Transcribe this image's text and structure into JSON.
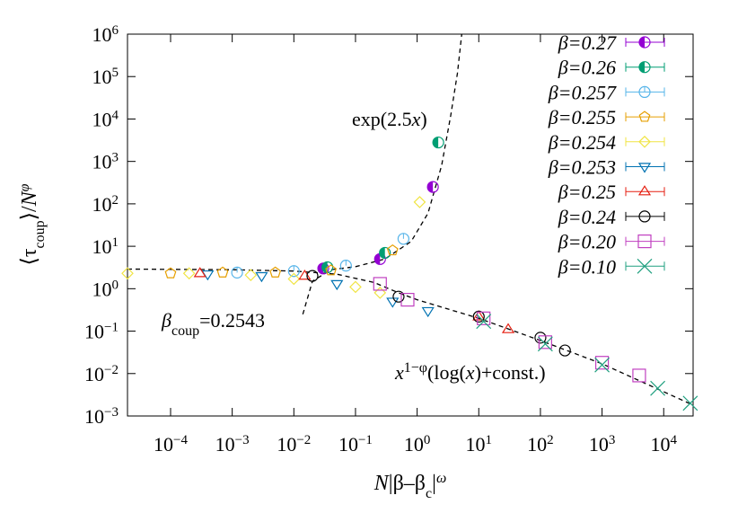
{
  "chart_data": {
    "type": "scatter",
    "x_log": true,
    "y_log": true,
    "xlim": [
      2e-05,
      30000
    ],
    "ylim": [
      0.001,
      1000000
    ],
    "xticks": [
      {
        "value": 0.0001,
        "label": [
          "10",
          "−4"
        ]
      },
      {
        "value": 0.001,
        "label": [
          "10",
          "−3"
        ]
      },
      {
        "value": 0.01,
        "label": [
          "10",
          "−2"
        ]
      },
      {
        "value": 0.1,
        "label": [
          "10",
          "−1"
        ]
      },
      {
        "value": 1,
        "label": [
          "10",
          "0"
        ]
      },
      {
        "value": 10,
        "label": [
          "10",
          "1"
        ]
      },
      {
        "value": 100,
        "label": [
          "10",
          "2"
        ]
      },
      {
        "value": 1000,
        "label": [
          "10",
          "3"
        ]
      },
      {
        "value": 10000,
        "label": [
          "10",
          "4"
        ]
      }
    ],
    "yticks": [
      {
        "value": 0.001,
        "label": [
          "10",
          "−3"
        ]
      },
      {
        "value": 0.01,
        "label": [
          "10",
          "−2"
        ]
      },
      {
        "value": 0.1,
        "label": [
          "10",
          "−1"
        ]
      },
      {
        "value": 1,
        "label": [
          "10",
          "0"
        ]
      },
      {
        "value": 10,
        "label": [
          "10",
          "1"
        ]
      },
      {
        "value": 100,
        "label": [
          "10",
          "2"
        ]
      },
      {
        "value": 1000,
        "label": [
          "10",
          "3"
        ]
      },
      {
        "value": 10000,
        "label": [
          "10",
          "4"
        ]
      },
      {
        "value": 100000,
        "label": [
          "10",
          "5"
        ]
      },
      {
        "value": 1000000,
        "label": [
          "10",
          "6"
        ]
      }
    ],
    "xlabel": [
      "N",
      "|β–β",
      "c",
      "|",
      "ω"
    ],
    "ylabel": [
      "⟨τ",
      "coup",
      "⟩/",
      "N",
      "φ"
    ],
    "legend": "top-right",
    "annotations": [
      {
        "parts": [
          "exp(2.5",
          "x",
          ")"
        ]
      },
      {
        "parts": [
          "β",
          "coup",
          "=0.2543"
        ]
      },
      {
        "parts": [
          "x",
          "1−φ",
          "(log(",
          "x",
          ")+const.)"
        ]
      }
    ],
    "curves": [
      {
        "x": [
          0.014,
          0.02,
          0.04,
          0.1,
          0.3,
          0.8,
          1.5,
          2.5,
          3.5,
          4.5,
          5.3
        ],
        "y": [
          0.25,
          1.5,
          2.8,
          3.3,
          5,
          13,
          60,
          800,
          12000,
          120000,
          1000000
        ]
      },
      {
        "x": [
          2e-05,
          0.001,
          0.01,
          0.05,
          0.2,
          0.5,
          1,
          10,
          100,
          1000,
          30000
        ],
        "y": [
          2.9,
          2.8,
          2.6,
          2.2,
          1.4,
          0.8,
          0.55,
          0.2,
          0.06,
          0.017,
          0.0018
        ]
      }
    ],
    "series": [
      {
        "name": "β=0.27",
        "color": "#9400d3",
        "marker": "half-circle",
        "x": [
          0.03,
          0.25,
          1.8
        ],
        "values": [
          3.0,
          5.0,
          250
        ]
      },
      {
        "name": "β=0.26",
        "color": "#009e73",
        "marker": "half-circle",
        "x": [
          0.035,
          0.3,
          2.2
        ],
        "values": [
          3.2,
          7,
          2800
        ]
      },
      {
        "name": "β=0.257",
        "color": "#56b4e9",
        "marker": "circle-bar",
        "x": [
          0.0012,
          0.01,
          0.07,
          0.6
        ],
        "values": [
          2.4,
          2.6,
          3.5,
          15
        ]
      },
      {
        "name": "β=0.255",
        "color": "#e69f00",
        "marker": "pentagon",
        "x": [
          0.0001,
          0.0007,
          0.005,
          0.04,
          0.4
        ],
        "values": [
          2.3,
          2.4,
          2.4,
          2.7,
          8
        ]
      },
      {
        "name": "β=0.254",
        "color": "#f0e442",
        "marker": "diamond",
        "x": [
          2e-05,
          0.0002,
          0.002,
          0.01,
          0.1,
          0.25,
          1.1
        ],
        "values": [
          2.3,
          2.3,
          2.1,
          1.7,
          1.1,
          0.8,
          110
        ]
      },
      {
        "name": "β=0.253",
        "color": "#0072b2",
        "marker": "triangle-down",
        "x": [
          0.0004,
          0.003,
          0.05,
          0.4,
          1.5
        ],
        "values": [
          2.2,
          2.0,
          1.3,
          0.5,
          0.3
        ]
      },
      {
        "name": "β=0.25",
        "color": "#e51e10",
        "marker": "triangle",
        "x": [
          0.0003,
          0.015,
          10,
          30
        ],
        "values": [
          2.3,
          2.0,
          0.22,
          0.11
        ]
      },
      {
        "name": "β=0.24",
        "color": "#000000",
        "marker": "circle",
        "x": [
          0.02,
          0.5,
          10,
          100,
          250
        ],
        "values": [
          2.0,
          0.65,
          0.22,
          0.07,
          0.035
        ]
      },
      {
        "name": "β=0.20",
        "color": "#c040c0",
        "marker": "square",
        "x": [
          0.25,
          0.7,
          12,
          120,
          1000,
          4000
        ],
        "values": [
          1.3,
          0.55,
          0.2,
          0.055,
          0.018,
          0.009
        ]
      },
      {
        "name": "β=0.10",
        "color": "#20a080",
        "marker": "cross",
        "x": [
          12,
          120,
          1000,
          8000,
          27000
        ],
        "values": [
          0.17,
          0.05,
          0.016,
          0.0045,
          0.002
        ]
      }
    ]
  }
}
